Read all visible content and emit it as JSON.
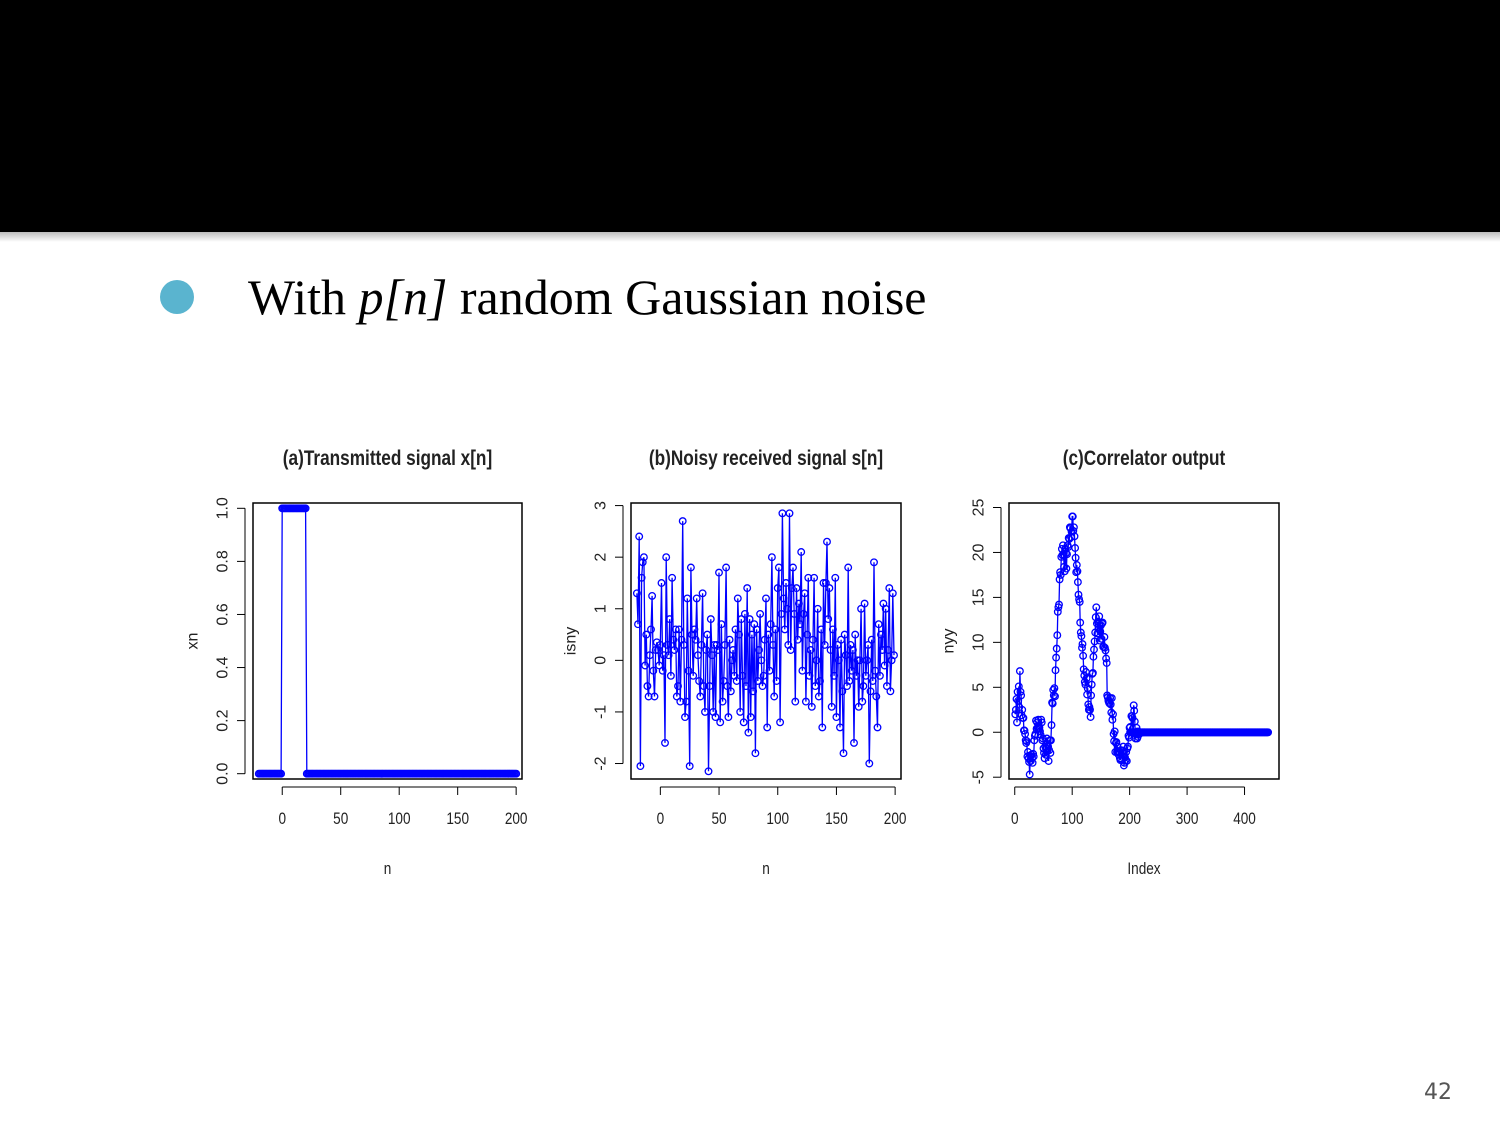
{
  "slide": {
    "bullet": {
      "prefix": "With ",
      "math": "p[n]",
      "suffix": " random Gaussian noise"
    },
    "page_number": "42",
    "bullet_color": "#5ab4cf",
    "header_color": "#000000"
  },
  "chart_data": [
    {
      "type": "line",
      "title": "(a)Transmitted signal x[n]",
      "xlabel": "n",
      "ylabel": "xn",
      "xlim": [
        -25,
        205
      ],
      "ylim": [
        -0.02,
        1.02
      ],
      "xticks": [
        "0",
        "50",
        "100",
        "150",
        "200"
      ],
      "xtick_values": [
        0,
        50,
        100,
        150,
        200
      ],
      "yticks": [
        "0.0",
        "0.2",
        "0.4",
        "0.6",
        "0.8",
        "1.0"
      ],
      "ytick_values": [
        0,
        0.2,
        0.4,
        0.6,
        0.8,
        1.0
      ],
      "color": "#0000ff",
      "series": [
        {
          "segments": [
            {
              "from": -20,
              "to": -1,
              "value": 0
            },
            {
              "from": 0,
              "to": 20,
              "value": 1
            },
            {
              "from": 21,
              "to": 200,
              "value": 0
            }
          ]
        }
      ]
    },
    {
      "type": "line",
      "title": "(b)Noisy received signal s[n]",
      "xlabel": "n",
      "ylabel": "isny",
      "xlim": [
        -25,
        205
      ],
      "ylim": [
        -2.3,
        3.05
      ],
      "xticks": [
        "0",
        "50",
        "100",
        "150",
        "200"
      ],
      "xtick_values": [
        0,
        50,
        100,
        150,
        200
      ],
      "yticks": [
        "-2",
        "-1",
        "0",
        "1",
        "2",
        "3"
      ],
      "ytick_values": [
        -2,
        -1,
        0,
        1,
        2,
        3
      ],
      "color": "#0000ff",
      "x_start": -20,
      "values": [
        1.3,
        0.7,
        2.4,
        -2.05,
        1.6,
        1.9,
        2.0,
        -0.1,
        0.5,
        -0.5,
        -0.7,
        0.1,
        0.6,
        1.25,
        -0.2,
        -0.7,
        0.2,
        0.35,
        0.2,
        -0.1,
        0.3,
        1.5,
        -0.2,
        0.1,
        -1.6,
        2.0,
        0.3,
        0.1,
        0.8,
        -0.3,
        1.6,
        0.4,
        0.2,
        0.6,
        -0.7,
        -0.5,
        0.6,
        -0.8,
        0.4,
        2.7,
        0.3,
        -1.1,
        -0.8,
        1.2,
        -0.2,
        -2.05,
        1.8,
        0.5,
        -0.3,
        0.6,
        0.4,
        1.2,
        0.1,
        -0.4,
        -0.7,
        0.3,
        1.3,
        -0.5,
        -1.0,
        0.2,
        0.5,
        -2.15,
        -0.5,
        0.8,
        0.1,
        -1.0,
        0.3,
        -1.1,
        0.3,
        0.2,
        1.7,
        -1.2,
        0.7,
        -0.8,
        -0.4,
        0.3,
        1.8,
        -0.5,
        -1.1,
        0.4,
        -0.6,
        0.0,
        0.2,
        -0.3,
        0.6,
        -0.4,
        1.2,
        0.5,
        -1.0,
        0.8,
        -0.3,
        -1.2,
        0.9,
        -0.5,
        1.4,
        -1.4,
        0.8,
        -1.1,
        0.5,
        -0.6,
        0.7,
        -1.8,
        0.6,
        -0.4,
        0.2,
        0.9,
        0.0,
        -0.5,
        -0.3,
        0.4,
        1.2,
        -1.3,
        0.5,
        -0.2,
        0.7,
        2.0,
        0.3,
        -0.7,
        0.6,
        -0.4,
        1.4,
        1.8,
        -1.2,
        0.9,
        2.85,
        1.2,
        0.6,
        1.5,
        1.0,
        0.3,
        2.85,
        0.2,
        1.4,
        1.8,
        0.9,
        -0.8,
        1.4,
        0.4,
        1.1,
        0.7,
        2.1,
        -0.2,
        0.9,
        1.3,
        -0.8,
        0.5,
        1.6,
        -0.3,
        0.2,
        -0.9,
        0.4,
        1.6,
        -0.5,
        0.0,
        1.0,
        -0.7,
        -0.4,
        0.6,
        -1.3,
        1.5,
        0.3,
        1.5,
        2.3,
        0.8,
        1.4,
        0.2,
        -0.9,
        0.6,
        -0.3,
        1.6,
        -1.1,
        0.3,
        0.0,
        -1.3,
        0.4,
        -0.6,
        -1.8,
        0.5,
        0.1,
        -0.5,
        1.8,
        -0.4,
        0.3,
        -0.2,
        0.2,
        -1.6,
        0.5,
        -0.3,
        0.0,
        -0.9,
        0.0,
        1.0,
        -0.8,
        -0.5,
        1.1,
        -0.3,
        0.0,
        0.3,
        -2.0,
        -0.6,
        0.4,
        -0.4,
        1.9,
        -0.2,
        -0.7,
        -1.3,
        0.7,
        -0.3,
        0.5,
        0.2,
        1.1,
        -0.1,
        1.0,
        -0.5,
        0.2,
        1.4,
        -0.6,
        0.0,
        1.3,
        0.1
      ]
    },
    {
      "type": "line",
      "title": "(c)Correlator output",
      "xlabel": "Index",
      "ylabel": "nyy",
      "xlim": [
        -10,
        460
      ],
      "ylim": [
        -5.2,
        25.5
      ],
      "xticks": [
        "0",
        "100",
        "200",
        "300",
        "400"
      ],
      "xtick_values": [
        0,
        100,
        200,
        300,
        400
      ],
      "yticks": [
        "-5",
        "0",
        "5",
        "10",
        "15",
        "20",
        "25"
      ],
      "ytick_values": [
        -5,
        0,
        5,
        10,
        15,
        20,
        25
      ],
      "color": "#0000ff",
      "x_start": 1,
      "values": [
        2.0,
        2.5,
        3.7,
        1.1,
        4.5,
        3.5,
        5.1,
        2.8,
        6.8,
        4.5,
        4.1,
        1.9,
        2.5,
        1.6,
        1.6,
        0.2,
        0.2,
        -0.2,
        -0.9,
        -1.2,
        -1.0,
        -2.7,
        -2.2,
        -2.9,
        -3.3,
        -4.7,
        -2.7,
        -3.2,
        -2.5,
        -2.9,
        -3.4,
        -2.4,
        -2.7,
        -0.9,
        -0.4,
        -0.2,
        1.3,
        0.4,
        1.1,
        0.5,
        1.4,
        0.7,
        0.5,
        0.1,
        -0.3,
        1.4,
        1.1,
        -0.9,
        -0.7,
        -1.8,
        -2.3,
        -2.9,
        -1.6,
        -2.5,
        -1.8,
        -0.7,
        -1.3,
        -1.6,
        -3.2,
        -2.0,
        -0.9,
        -2.3,
        -0.9,
        0.8,
        3.3,
        3.2,
        4.7,
        4.1,
        4.9,
        4.0,
        6.9,
        8.3,
        9.3,
        10.8,
        13.4,
        13.9,
        14.2,
        17.0,
        17.8,
        17.5,
        19.5,
        20.4,
        19.7,
        20.8,
        19.8,
        18.4,
        17.9,
        20.4,
        19.9,
        18.2,
        19.8,
        20.8,
        20.6,
        21.6,
        21.5,
        22.8,
        22.7,
        21.7,
        22.3,
        24.0,
        24.0,
        22.4,
        22.8,
        21.8,
        20.5,
        19.4,
        17.8,
        18.6,
        17.9,
        16.7,
        15.3,
        14.8,
        14.5,
        12.2,
        11.1,
        10.7,
        9.4,
        9.8,
        8.5,
        7.0,
        6.3,
        5.6,
        5.3,
        6.7,
        6.0,
        4.2,
        4.9,
        3.1,
        2.5,
        2.8,
        2.5,
        1.7,
        4.1,
        5.3,
        6.5,
        6.6,
        8.4,
        9.2,
        10.1,
        11.1,
        12.8,
        13.9,
        12.1,
        11.0,
        12.3,
        11.5,
        12.9,
        10.2,
        11.2,
        11.9,
        10.4,
        12.1,
        12.2,
        9.5,
        9.5,
        10.6,
        9.4,
        9.1,
        8.2,
        7.7,
        4.1,
        3.9,
        3.5,
        3.3,
        3.2,
        3.8,
        3.1,
        2.2,
        3.8,
        1.4,
        2.0,
        -0.2,
        -1.0,
        0.1,
        -2.2,
        -1.2,
        -1.1,
        -2.2,
        -1.6,
        -2.2,
        -2.5,
        -2.2,
        -2.9,
        -3.1,
        -2.0,
        -2.5,
        -3.1,
        -2.1,
        -1.6,
        -3.7,
        -3.4,
        -2.8,
        -3.1,
        -2.2,
        -3.2,
        -1.8,
        -1.6,
        -0.4,
        -0.6,
        0.5,
        0.6,
        0.0,
        1.8,
        1.8,
        1.6,
        0.0,
        3.0,
        2.4,
        1.2,
        -0.7,
        -0.2,
        0.5,
        -0.7,
        -0.5,
        0.1,
        0.0,
        -0.2
      ],
      "flat_after": {
        "from": 201,
        "to": 441,
        "value": 0
      }
    }
  ]
}
